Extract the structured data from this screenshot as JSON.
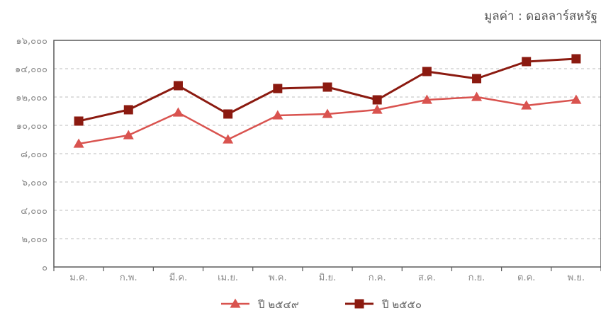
{
  "chart_data": {
    "type": "line",
    "title": "",
    "unit_label": "มูลค่า : ดอลลาร์สหรัฐ",
    "xlabel": "",
    "ylabel": "",
    "ylim": [
      0,
      16000
    ],
    "y_ticks": [
      0,
      2000,
      4000,
      6000,
      8000,
      10000,
      12000,
      14000,
      16000
    ],
    "y_tick_labels": [
      "๐",
      "๒,๐๐๐",
      "๔,๐๐๐",
      "๖,๐๐๐",
      "๘,๐๐๐",
      "๑๐,๐๐๐",
      "๑๒,๐๐๐",
      "๑๔,๐๐๐",
      "๑๖,๐๐๐"
    ],
    "categories": [
      "ม.ค.",
      "ก.พ.",
      "มี.ค.",
      "เม.ย.",
      "พ.ค.",
      "มิ.ย.",
      "ก.ค.",
      "ส.ค.",
      "ก.ย.",
      "ต.ค.",
      "พ.ย."
    ],
    "grid": "horizontal-dashed",
    "legend_position": "bottom",
    "series": [
      {
        "name": "ปี ๒๕๔๙",
        "color": "#d9534f",
        "marker": "triangle",
        "values": [
          8700,
          9300,
          10900,
          9000,
          10700,
          10800,
          11100,
          11800,
          12000,
          11400,
          11800
        ]
      },
      {
        "name": "ปี ๒๕๕๐",
        "color": "#8b1a10",
        "marker": "square",
        "values": [
          10300,
          11100,
          12800,
          10800,
          12600,
          12700,
          11800,
          13800,
          13300,
          14500,
          14700
        ]
      }
    ]
  }
}
